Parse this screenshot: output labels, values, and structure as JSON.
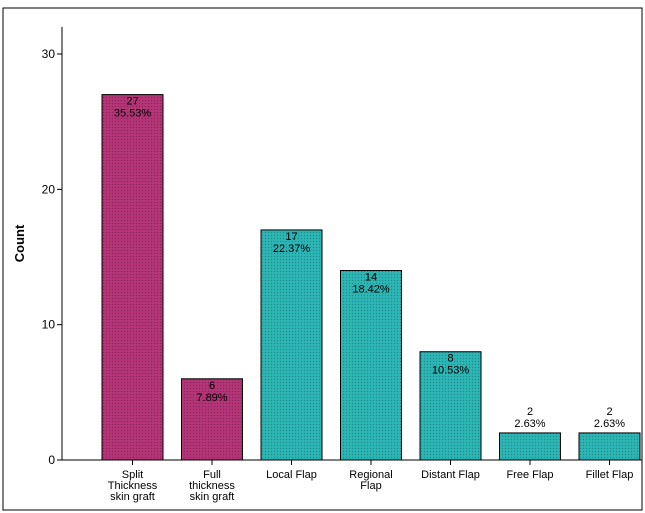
{
  "chart_data": {
    "type": "bar",
    "title": "",
    "xlabel": "",
    "ylabel": "Count",
    "ylim": [
      0,
      32
    ],
    "yticks": [
      0,
      10,
      20,
      30
    ],
    "grid": false,
    "categories": [
      [
        "Split",
        "Thickness",
        "skin graft"
      ],
      [
        "Full",
        "thickness",
        "skin graft"
      ],
      [
        "Local Flap"
      ],
      [
        "Regional",
        "Flap"
      ],
      [
        "Distant Flap"
      ],
      [
        "Free Flap"
      ],
      [
        "Fillet Flap"
      ]
    ],
    "values": [
      27,
      6,
      17,
      14,
      8,
      2,
      2
    ],
    "percent_labels": [
      "35.53%",
      "7.89%",
      "22.37%",
      "18.42%",
      "10.53%",
      "2.63%",
      "2.63%"
    ],
    "colors": [
      "#b23577",
      "#b23577",
      "#2db5b4",
      "#2db5b4",
      "#2db5b4",
      "#2db5b4",
      "#2db5b4"
    ]
  }
}
